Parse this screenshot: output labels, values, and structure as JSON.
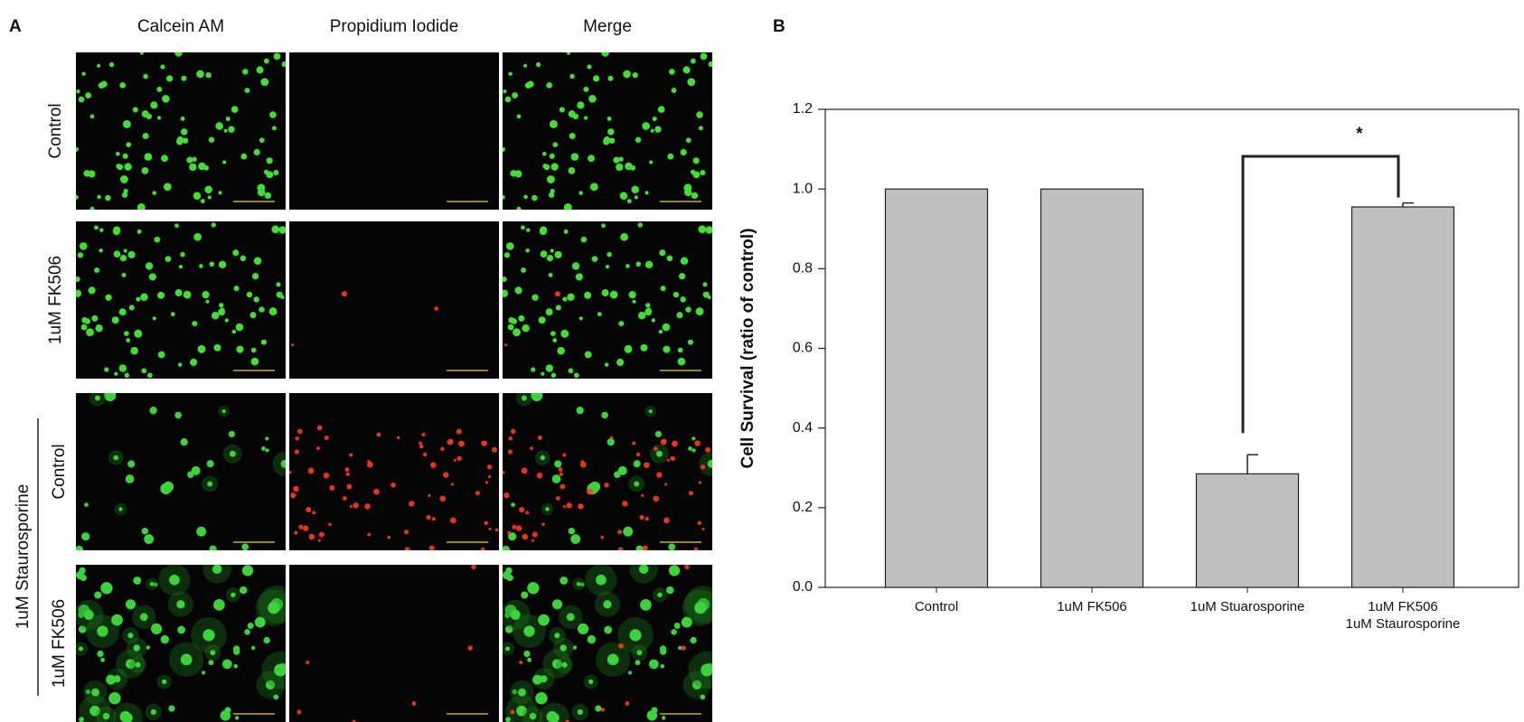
{
  "panel_a": {
    "label": "A",
    "columns": [
      "Calcein AM",
      "Propidium Iodide",
      "Merge"
    ],
    "rows": [
      "Control",
      "1uM FK506",
      "Control",
      "1uM FK506"
    ],
    "group_label": "1uM Staurosporine"
  },
  "chart_data": {
    "type": "bar",
    "panel_label": "B",
    "y_label": "Cell Survival (ratio of control)",
    "categories": [
      "Control",
      "1uM FK506",
      "1uM Stuarosporine",
      "1uM FK506\n1uM Staurosporine"
    ],
    "values": [
      1.0,
      1.0,
      0.285,
      0.955
    ],
    "errors": [
      0,
      0,
      0.048,
      0.01
    ],
    "color": "#c0c0c0",
    "ylim": [
      0,
      1.2
    ],
    "yticks": [
      {
        "value": 0,
        "label": "0.0"
      },
      0.2,
      0.4,
      0.6,
      0.8,
      {
        "value": 1,
        "label": "1.0"
      },
      1.2
    ],
    "annotation": "*",
    "grid": false
  }
}
